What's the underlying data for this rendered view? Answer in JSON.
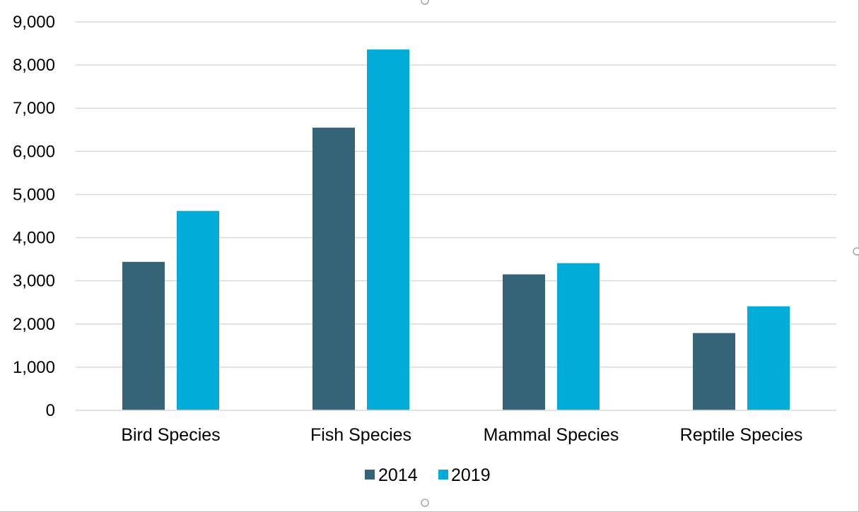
{
  "chart_data": {
    "type": "bar",
    "title": "",
    "xlabel": "",
    "ylabel": "",
    "categories": [
      "Bird Species",
      "Fish Species",
      "Mammal Species",
      "Reptile Species"
    ],
    "series": [
      {
        "name": "2014",
        "values": [
          3440,
          6550,
          3150,
          1790
        ],
        "color": "#356479"
      },
      {
        "name": "2019",
        "values": [
          4620,
          8360,
          3410,
          2410
        ],
        "color": "#02acd8"
      }
    ],
    "ylim": [
      0,
      9000
    ],
    "yticks": [
      0,
      1000,
      2000,
      3000,
      4000,
      5000,
      6000,
      7000,
      8000,
      9000
    ],
    "ytick_labels": [
      "0",
      "1,000",
      "2,000",
      "3,000",
      "4,000",
      "5,000",
      "6,000",
      "7,000",
      "8,000",
      "9,000"
    ],
    "grid": true,
    "gridline_color": "#d9d9d9",
    "legend_position": "bottom"
  }
}
